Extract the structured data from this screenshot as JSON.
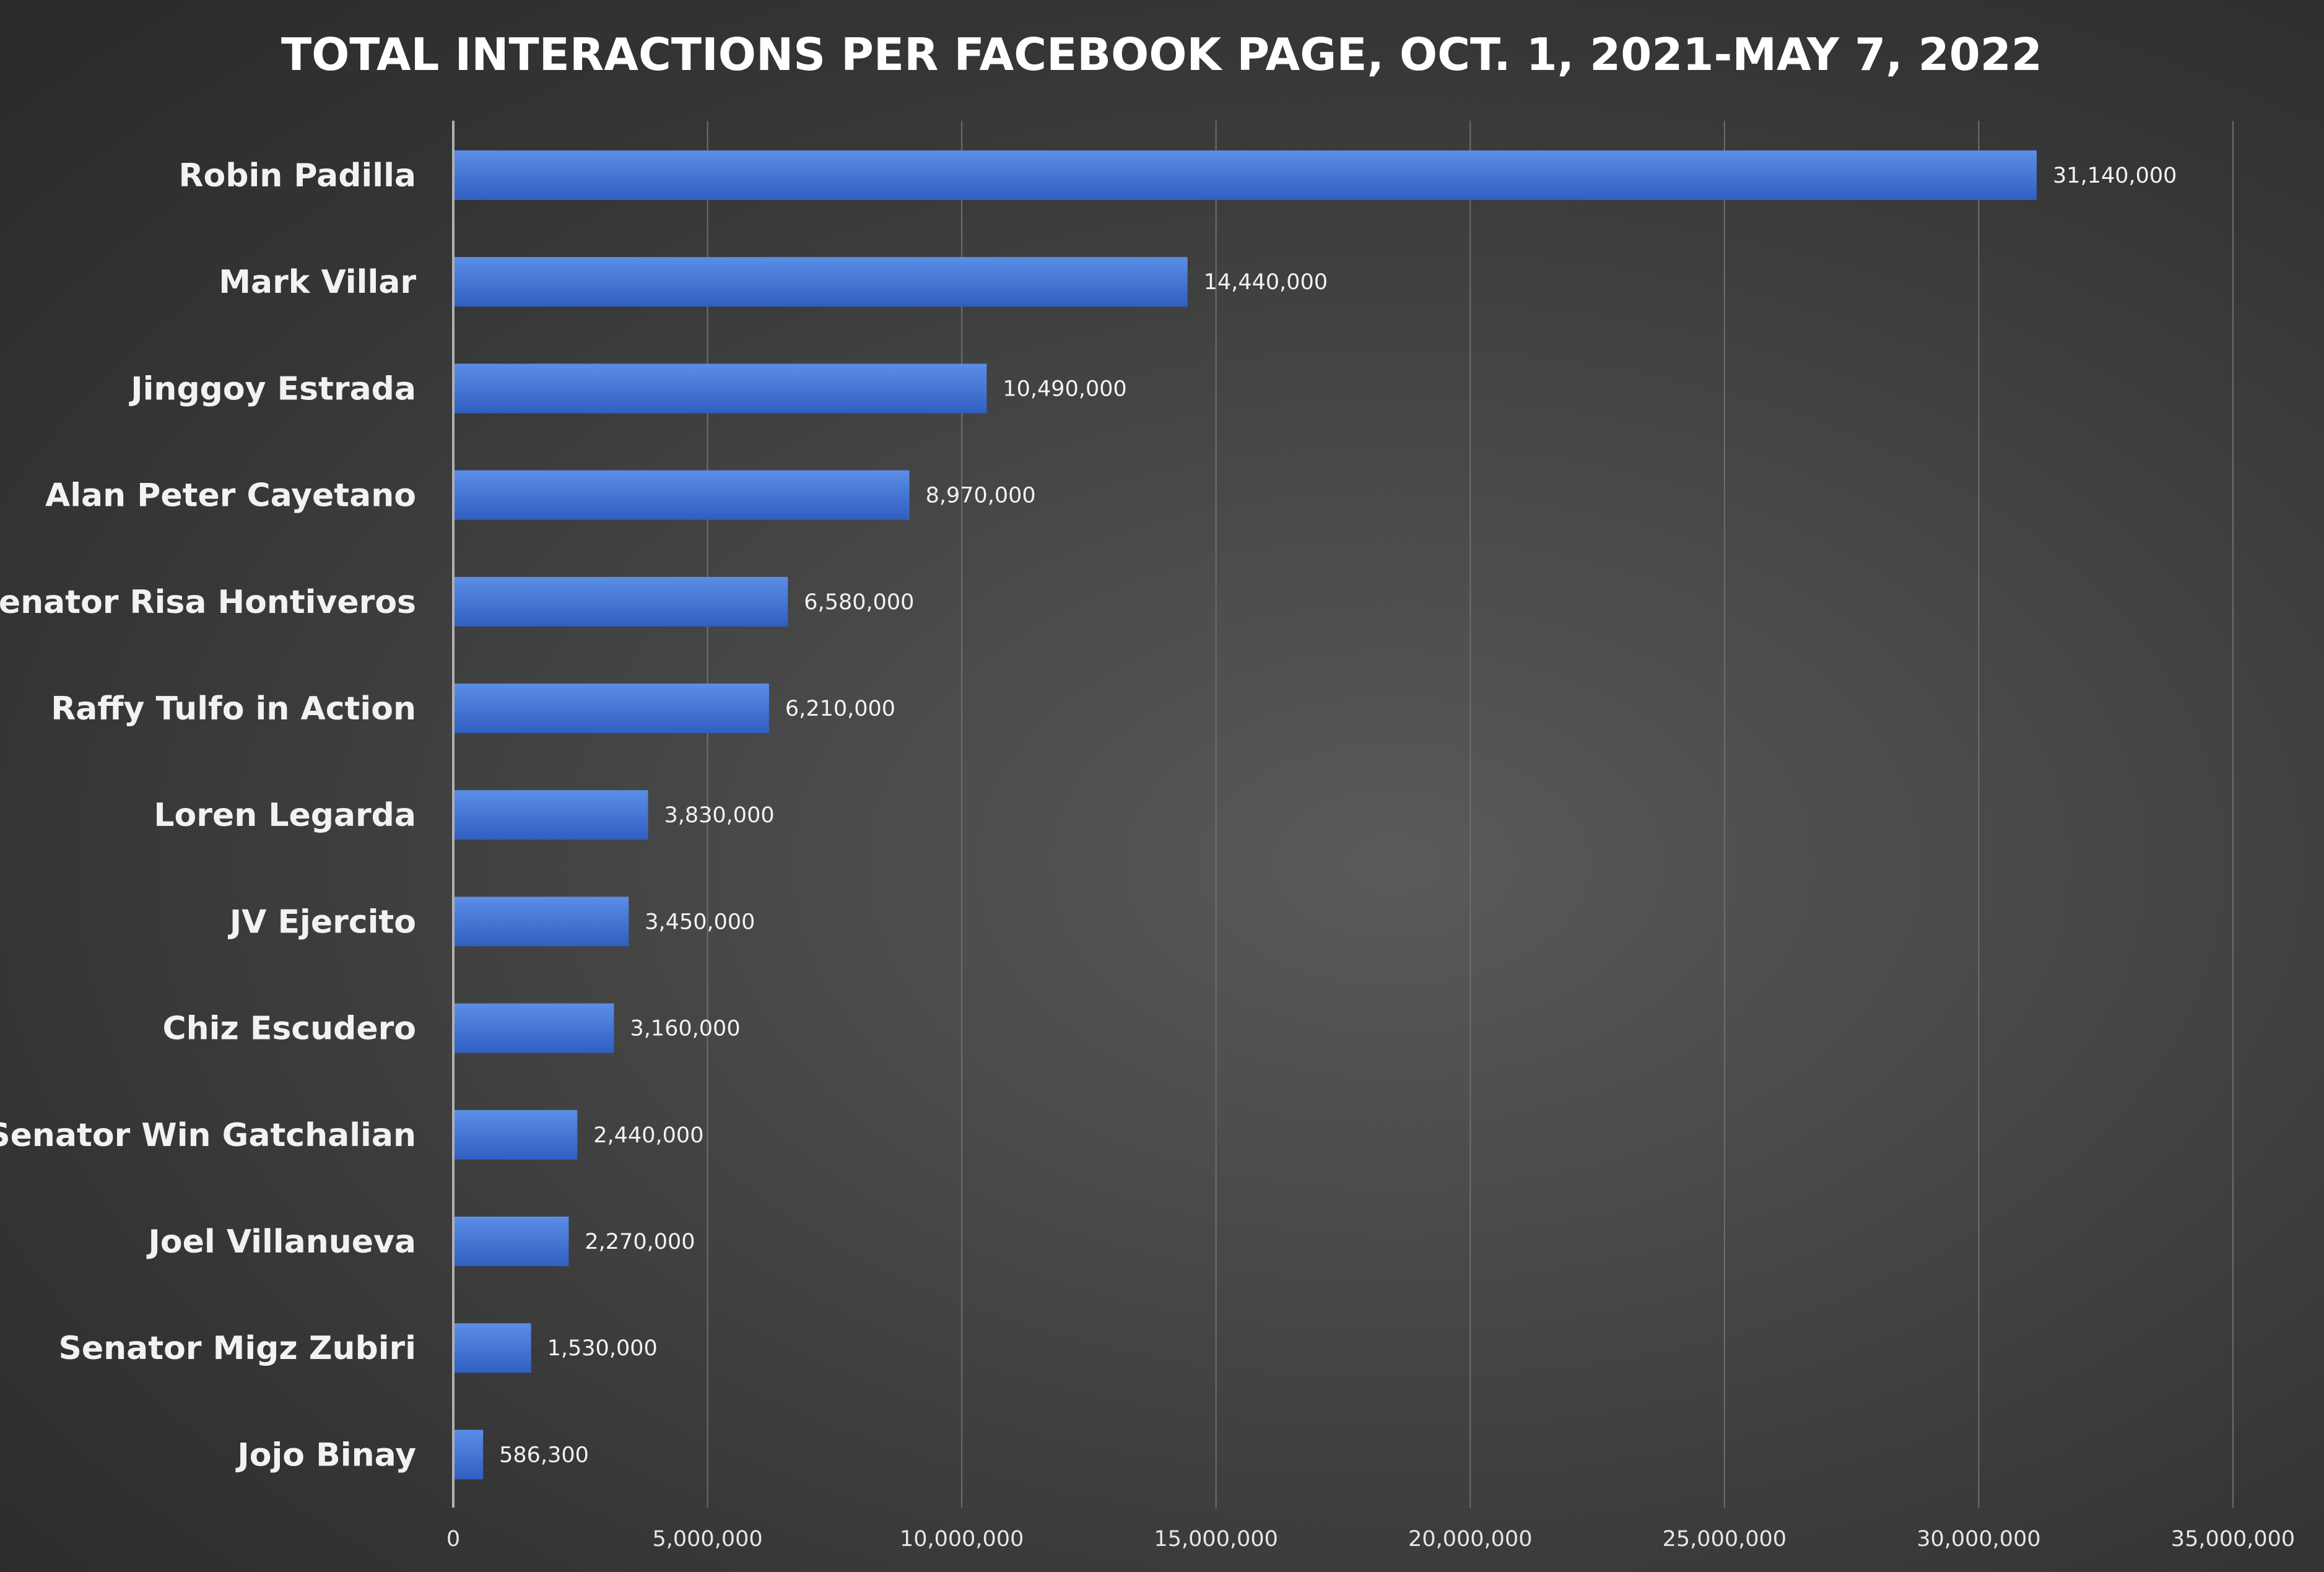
{
  "colors": {
    "bar_top": "#5b8ee6",
    "bar_bottom": "#2f5fc2",
    "gridline": "#6e6e6e",
    "axis_line": "#b0b0b0",
    "text": "#f2f2f2"
  },
  "chart_data": {
    "type": "bar",
    "orientation": "horizontal",
    "title": "TOTAL INTERACTIONS PER FACEBOOK PAGE, OCT. 1, 2021-MAY 7, 2022",
    "xlabel": "",
    "ylabel": "",
    "categories": [
      "Robin Padilla",
      "Mark Villar",
      "Jinggoy Estrada",
      "Alan Peter Cayetano",
      "Senator Risa Hontiveros",
      "Raffy Tulfo in Action",
      "Loren Legarda",
      "JV Ejercito",
      "Chiz Escudero",
      "Senator Win Gatchalian",
      "Joel Villanueva",
      "Senator Migz Zubiri",
      "Jojo Binay"
    ],
    "values": [
      31140000,
      14440000,
      10490000,
      8970000,
      6580000,
      6210000,
      3830000,
      3450000,
      3160000,
      2440000,
      2270000,
      1530000,
      586300
    ],
    "value_labels": [
      "31,140,000",
      "14,440,000",
      "10,490,000",
      "8,970,000",
      "6,580,000",
      "6,210,000",
      "3,830,000",
      "3,450,000",
      "3,160,000",
      "2,440,000",
      "2,270,000",
      "1,530,000",
      "586,300"
    ],
    "xlim": [
      0,
      35000000
    ],
    "x_ticks": [
      0,
      5000000,
      10000000,
      15000000,
      20000000,
      25000000,
      30000000,
      35000000
    ],
    "x_tick_labels": [
      "0",
      "5,000,000",
      "10,000,000",
      "15,000,000",
      "20,000,000",
      "25,000,000",
      "30,000,000",
      "35,000,000"
    ],
    "grid": true,
    "legend": "none"
  }
}
